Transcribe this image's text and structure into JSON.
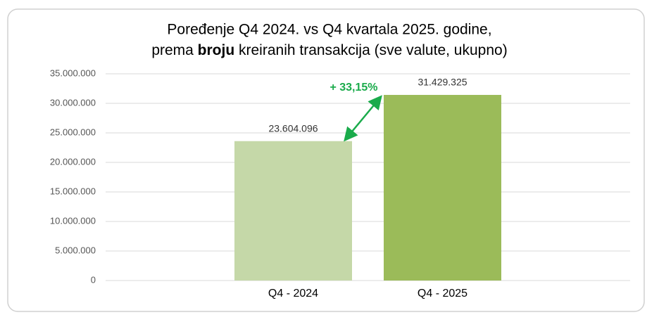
{
  "chart_data": {
    "type": "bar",
    "title": [
      "Poređenje Q4 2024. vs Q4 kvartala 2025. godine,",
      "prema ",
      "broju",
      " kreiranih transakcija (sve valute, ukupno)"
    ],
    "categories": [
      "Q4 - 2024",
      "Q4 - 2025"
    ],
    "values": [
      23604096,
      31429325
    ],
    "value_labels": [
      "23.604.096",
      "31.429.325"
    ],
    "colors": [
      "#c5d8a8",
      "#9bbb59"
    ],
    "annotation": "+ 33,15%",
    "annotation_color": "#1aab4b",
    "ylim": [
      0,
      35000000
    ],
    "yticks": [
      0,
      {
        "value": 5000000,
        "label": "5.000.000"
      },
      {
        "value": 10000000,
        "label": "10.000.000"
      },
      {
        "value": 15000000,
        "label": "15.000.000"
      },
      {
        "value": 20000000,
        "label": "20.000.000"
      },
      {
        "value": 25000000,
        "label": "25.000.000"
      },
      {
        "value": 30000000,
        "label": "30.000.000"
      },
      {
        "value": 35000000,
        "label": "35.000.000"
      }
    ],
    "grid": true
  }
}
